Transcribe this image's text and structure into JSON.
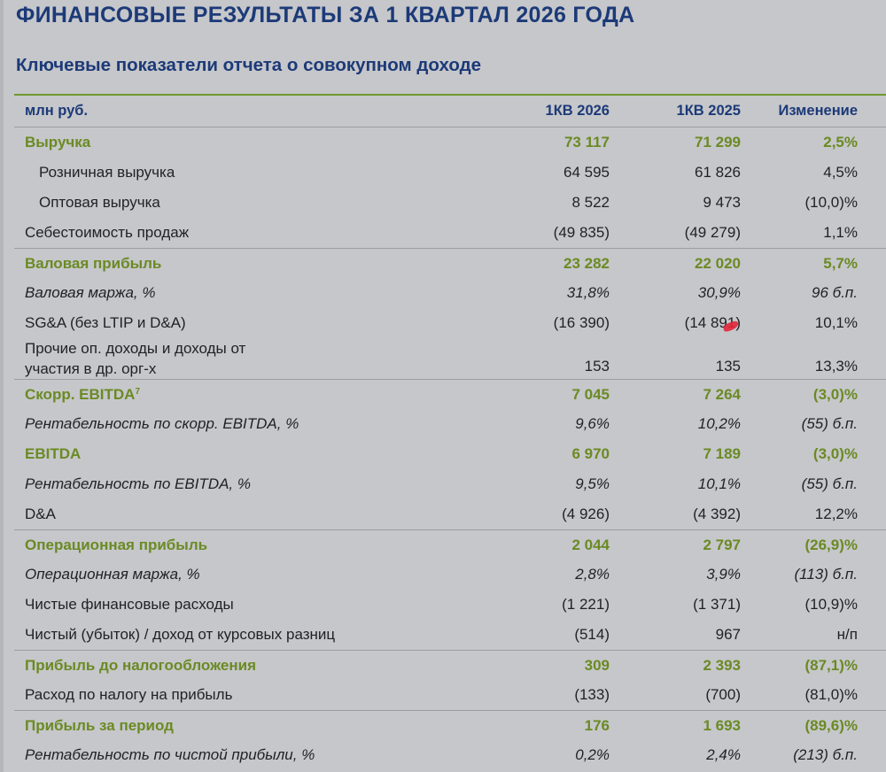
{
  "title": "ФИНАНСОВЫЕ РЕЗУЛЬТАТЫ ЗА 1 КВАРТАЛ 2026 ГОДА",
  "subtitle": "Ключевые показатели отчета о совокупном доходе",
  "header": {
    "unit": "млн руб.",
    "col1": "1КВ 2026",
    "col2": "1КВ 2025",
    "col3": "Изменение"
  },
  "rows": [
    {
      "label": "Выручка",
      "v1": "73 117",
      "v2": "71 299",
      "v3": "2,5%"
    },
    {
      "label": "Розничная выручка",
      "v1": "64 595",
      "v2": "61 826",
      "v3": "4,5%"
    },
    {
      "label": "Оптовая выручка",
      "v1": "8 522",
      "v2": "9 473",
      "v3": "(10,0)%"
    },
    {
      "label": "Себестоимость продаж",
      "v1": "(49 835)",
      "v2": "(49 279)",
      "v3": "1,1%"
    },
    {
      "label": "Валовая прибыль",
      "v1": "23 282",
      "v2": "22 020",
      "v3": "5,7%"
    },
    {
      "label": "Валовая маржа, %",
      "v1": "31,8%",
      "v2": "30,9%",
      "v3": "96 б.п."
    },
    {
      "label": "SG&A (без LTIP и D&A)",
      "v1": "(16 390)",
      "v2": "(14 891)",
      "v3": "10,1%"
    },
    {
      "label": "Прочие оп. доходы и доходы от участия в др. орг-х",
      "v1": "153",
      "v2": "135",
      "v3": "13,3%"
    },
    {
      "label": "Скорр. EBITDA",
      "sup": "7",
      "v1": "7 045",
      "v2": "7 264",
      "v3": "(3,0)%"
    },
    {
      "label": "Рентабельность по скорр. EBITDA, %",
      "v1": "9,6%",
      "v2": "10,2%",
      "v3": "(55) б.п."
    },
    {
      "label": "EBITDA",
      "v1": "6 970",
      "v2": "7 189",
      "v3": "(3,0)%"
    },
    {
      "label": "Рентабельность по EBITDA, %",
      "v1": "9,5%",
      "v2": "10,1%",
      "v3": "(55) б.п."
    },
    {
      "label": "D&A",
      "v1": "(4 926)",
      "v2": "(4 392)",
      "v3": "12,2%"
    },
    {
      "label": "Операционная прибыль",
      "v1": "2 044",
      "v2": "2 797",
      "v3": "(26,9)%"
    },
    {
      "label": "Операционная маржа, %",
      "v1": "2,8%",
      "v2": "3,9%",
      "v3": "(113) б.п."
    },
    {
      "label": "Чистые финансовые расходы",
      "v1": "(1 221)",
      "v2": "(1 371)",
      "v3": "(10,9)%"
    },
    {
      "label": "Чистый (убыток) / доход от курсовых разниц",
      "v1": "(514)",
      "v2": "967",
      "v3": "н/п"
    },
    {
      "label": "Прибыль до налогообложения",
      "v1": "309",
      "v2": "2 393",
      "v3": "(87,1)%"
    },
    {
      "label": "Расход по налогу на прибыль",
      "v1": "(133)",
      "v2": "(700)",
      "v3": "(81,0)%"
    },
    {
      "label": "Прибыль за период",
      "v1": "176",
      "v2": "1 693",
      "v3": "(89,6)%"
    },
    {
      "label": "Рентабельность по чистой прибыли, %",
      "v1": "0,2%",
      "v2": "2,4%",
      "v3": "(213) б.п."
    }
  ],
  "colors": {
    "title": "#1c3a78",
    "highlight": "#6b8a24",
    "background": "#c6c7ca"
  }
}
